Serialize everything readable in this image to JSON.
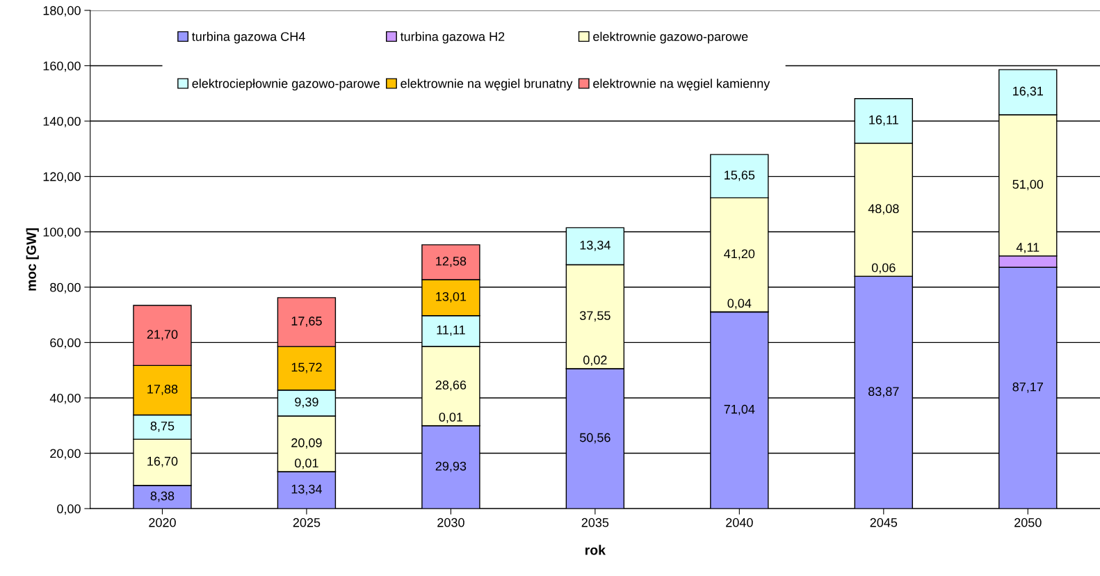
{
  "chart_data": {
    "type": "bar",
    "stacked": true,
    "xlabel": "rok",
    "ylabel": "moc [GW]",
    "categories": [
      "2020",
      "2025",
      "2030",
      "2035",
      "2040",
      "2045",
      "2050"
    ],
    "ylim": [
      0,
      180
    ],
    "yticks": [
      {
        "value": 0,
        "label": "0,00"
      },
      {
        "value": 20,
        "label": "20,00"
      },
      {
        "value": 40,
        "label": "40,00"
      },
      {
        "value": 60,
        "label": "60,00"
      },
      {
        "value": 80,
        "label": "80,00"
      },
      {
        "value": 100,
        "label": "100,00"
      },
      {
        "value": 120,
        "label": "120,00"
      },
      {
        "value": 140,
        "label": "140,00"
      },
      {
        "value": 160,
        "label": "160,00"
      },
      {
        "value": 180,
        "label": "180,00"
      }
    ],
    "grid": "y",
    "legend": "top",
    "series": [
      {
        "name": "turbina gazowa CH4",
        "color": "#9999ff",
        "values": [
          8.38,
          13.34,
          29.93,
          50.56,
          71.04,
          83.87,
          87.17
        ],
        "value_labels": [
          "8,38",
          "13,34",
          "29,93",
          "50,56",
          "71,04",
          "83,87",
          "87,17"
        ]
      },
      {
        "name": "turbina gazowa H2",
        "color": "#cc99ff",
        "values": [
          null,
          0.01,
          0.01,
          0.02,
          0.04,
          0.06,
          4.11
        ],
        "value_labels": [
          null,
          "0,01",
          "0,01",
          "0,02",
          "0,04",
          "0,06",
          "4,11"
        ]
      },
      {
        "name": "elektrownie gazowo-parowe",
        "color": "#ffffcc",
        "values": [
          16.7,
          20.09,
          28.66,
          37.55,
          41.2,
          48.08,
          51.0
        ],
        "value_labels": [
          "16,70",
          "20,09",
          "28,66",
          "37,55",
          "41,20",
          "48,08",
          "51,00"
        ]
      },
      {
        "name": "elektrociepłownie gazowo-parowe",
        "color": "#ccffff",
        "values": [
          8.75,
          9.39,
          11.11,
          13.34,
          15.65,
          16.11,
          16.31
        ],
        "value_labels": [
          "8,75",
          "9,39",
          "11,11",
          "13,34",
          "15,65",
          "16,11",
          "16,31"
        ]
      },
      {
        "name": "elektrownie na węgiel brunatny",
        "color": "#ffc000",
        "values": [
          17.88,
          15.72,
          13.01,
          null,
          null,
          null,
          null
        ],
        "value_labels": [
          "17,88",
          "15,72",
          "13,01",
          null,
          null,
          null,
          null
        ]
      },
      {
        "name": "elektrownie na węgiel kamienny",
        "color": "#ff8080",
        "values": [
          21.7,
          17.65,
          12.58,
          null,
          null,
          null,
          null
        ],
        "value_labels": [
          "21,70",
          "17,65",
          "12,58",
          null,
          null,
          null,
          null
        ]
      }
    ]
  }
}
